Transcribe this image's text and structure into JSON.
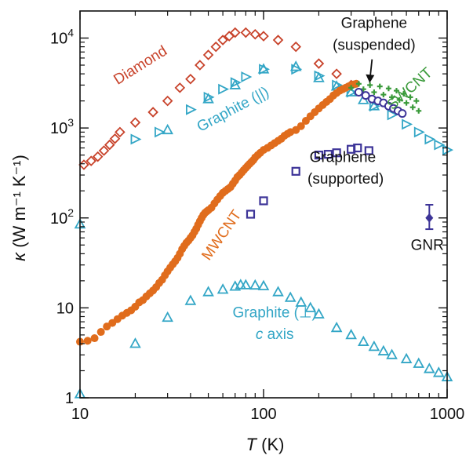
{
  "chart_data": {
    "type": "scatter",
    "xscale": "log",
    "yscale": "log",
    "xlim": [
      10,
      1000
    ],
    "ylim": [
      1,
      20000
    ],
    "xlabel": {
      "symbol": "T",
      "unit": " (K)"
    },
    "ylabel": {
      "symbol": "κ",
      "unit": " (W m⁻¹ K⁻¹)"
    },
    "xticks": [
      {
        "value": 10,
        "label": "10"
      },
      {
        "value": 100,
        "label": "100"
      },
      {
        "value": 1000,
        "label": "1000"
      }
    ],
    "yticks": [
      {
        "value": 1,
        "base": "1",
        "exp": ""
      },
      {
        "value": 10,
        "base": "10",
        "exp": ""
      },
      {
        "value": 100,
        "base": "10",
        "exp": "2"
      },
      {
        "value": 1000,
        "base": "10",
        "exp": "3"
      },
      {
        "value": 10000,
        "base": "10",
        "exp": "4"
      }
    ],
    "colors": {
      "diamond": "#c8432b",
      "graphite": "#33a6c6",
      "mwcnt": "#e06c1c",
      "swcnt": "#3a9a3a",
      "graphene": "#3d3498",
      "axis": "#111111"
    },
    "series": [
      {
        "key": "diamond",
        "marker": "open-diamond",
        "x": [
          10.5,
          11.5,
          12.5,
          13.5,
          14.5,
          15.5,
          16.5,
          20,
          25,
          30,
          35,
          40,
          45,
          50,
          55,
          60,
          65,
          70,
          80,
          90,
          100,
          120,
          150,
          200,
          250,
          300
        ],
        "y": [
          390,
          430,
          480,
          560,
          650,
          760,
          900,
          1150,
          1500,
          2000,
          2800,
          3500,
          5000,
          6500,
          8000,
          9500,
          10500,
          11500,
          11500,
          11000,
          10500,
          9500,
          8000,
          5200,
          4000,
          3000
        ]
      },
      {
        "key": "graphite-inplane",
        "marker": "open-triangle-right",
        "x": [
          20,
          27,
          40,
          50,
          60,
          70,
          80,
          100,
          150,
          200,
          250,
          300,
          400,
          500,
          600,
          700,
          800,
          900,
          1000
        ],
        "y": [
          750,
          900,
          1600,
          2200,
          2700,
          3200,
          3700,
          4500,
          4500,
          3800,
          3000,
          2500,
          1750,
          1400,
          1100,
          900,
          750,
          650,
          570
        ]
      },
      {
        "key": "graphite-inplane-triangles",
        "marker": "open-triangle-up",
        "x": [
          10,
          30,
          50,
          70,
          100,
          150,
          200,
          250,
          300,
          350,
          400
        ],
        "y": [
          85,
          950,
          2100,
          3000,
          4500,
          4800,
          3600,
          2900,
          2500,
          2050,
          1750
        ]
      },
      {
        "key": "mwcnt",
        "marker": "filled-circle",
        "x": [
          10,
          11,
          12,
          13,
          14,
          15,
          16,
          17,
          18,
          19,
          20,
          21,
          22,
          23,
          24,
          25,
          26,
          27,
          28,
          29,
          30,
          31,
          32,
          33,
          34,
          35,
          36,
          37,
          38,
          39,
          40,
          41,
          42,
          43,
          44,
          45,
          46,
          47,
          48,
          49,
          50,
          52,
          54,
          56,
          58,
          60,
          62,
          64,
          66,
          68,
          70,
          72,
          74,
          76,
          78,
          80,
          82,
          84,
          86,
          88,
          90,
          93,
          96,
          100,
          105,
          110,
          115,
          120,
          125,
          130,
          135,
          140,
          150,
          160,
          170,
          180,
          190,
          200,
          210,
          220,
          230,
          240,
          250,
          260,
          270,
          280,
          290,
          300,
          310,
          320
        ],
        "y": [
          4.2,
          4.3,
          4.6,
          5.4,
          6.2,
          6.8,
          7.5,
          8.2,
          8.8,
          9.4,
          10.3,
          11.5,
          12.2,
          13.4,
          14.5,
          15.6,
          17.0,
          18.9,
          20.5,
          23.0,
          25.5,
          28.0,
          30.5,
          33.0,
          36.0,
          40.0,
          45.0,
          49.0,
          53.0,
          56.0,
          60.0,
          64.0,
          70.0,
          76.0,
          84.0,
          92.0,
          100,
          108,
          114,
          118,
          122,
          130,
          145,
          160,
          175,
          190,
          200,
          210,
          220,
          240,
          260,
          285,
          300,
          320,
          340,
          360,
          380,
          400,
          420,
          440,
          470,
          500,
          530,
          570,
          600,
          640,
          680,
          720,
          760,
          820,
          860,
          900,
          950,
          1050,
          1200,
          1350,
          1500,
          1650,
          1800,
          1950,
          2100,
          2300,
          2450,
          2600,
          2700,
          2800,
          2900,
          3000,
          3050,
          3100
        ]
      },
      {
        "key": "swcnt",
        "marker": "plus",
        "x": [
          300,
          350,
          400,
          450,
          500,
          550,
          600,
          650,
          700,
          330,
          380,
          430,
          480,
          530,
          580,
          630,
          680
        ],
        "y": [
          2800,
          2700,
          2500,
          2350,
          2200,
          2050,
          1900,
          1700,
          1550,
          3100,
          3000,
          2900,
          2750,
          2600,
          2400,
          2200,
          2000
        ]
      },
      {
        "key": "graphene-suspended",
        "marker": "open-circle",
        "x": [
          330,
          360,
          390,
          420,
          450,
          480,
          510,
          540,
          570
        ],
        "y": [
          2500,
          2300,
          2100,
          2000,
          1900,
          1750,
          1650,
          1550,
          1450
        ]
      },
      {
        "key": "graphene-supported",
        "marker": "open-square",
        "x": [
          85,
          100,
          150,
          200,
          225,
          250,
          300,
          325,
          375
        ],
        "y": [
          110,
          155,
          330,
          500,
          510,
          530,
          580,
          600,
          560
        ]
      },
      {
        "key": "graphite-cross",
        "marker": "open-triangle-up",
        "x": [
          10,
          20,
          30,
          40,
          50,
          60,
          70,
          75,
          80,
          90,
          100,
          120,
          140,
          160,
          180,
          200,
          250,
          300,
          350,
          400,
          450,
          500,
          600,
          700,
          800,
          900,
          1000
        ],
        "y": [
          1.1,
          4.0,
          7.8,
          12.0,
          15.0,
          16.0,
          17.3,
          18.0,
          17.9,
          17.8,
          17.5,
          15.0,
          13.0,
          11.5,
          10.0,
          8.5,
          6.0,
          5.0,
          4.2,
          3.7,
          3.3,
          3.0,
          2.7,
          2.4,
          2.1,
          1.9,
          1.7
        ]
      }
    ],
    "gnr": {
      "x": 800,
      "y": 100,
      "ylow": 75,
      "yhigh": 140
    },
    "annotations": [
      {
        "key": "diamond",
        "text": "Diamond",
        "x": 22,
        "y": 4500,
        "rotate": -32
      },
      {
        "key": "graphite-inplane",
        "text": "Graphite (||)",
        "x": 70,
        "y": 1450,
        "rotate": -28
      },
      {
        "key": "mwcnt",
        "text": "MWCNT",
        "x": 62,
        "y": 60,
        "rotate": -55
      },
      {
        "key": "swcnt",
        "text": "SWCNT",
        "x": 650,
        "y": 2500,
        "rotate": -42
      },
      {
        "key": "graphene-suspended-1",
        "text": "Graphene",
        "x": 400,
        "y": 13000,
        "rotate": 0
      },
      {
        "key": "graphene-suspended-2",
        "text": "(suspended)",
        "x": 400,
        "y": 7400,
        "rotate": 0
      },
      {
        "key": "graphene-supported-1",
        "text": "Graphene",
        "x": 270,
        "y": 420,
        "rotate": 0
      },
      {
        "key": "graphene-supported-2",
        "text": "(supported)",
        "x": 280,
        "y": 240,
        "rotate": 0
      },
      {
        "key": "gnr",
        "text": "GNR",
        "x": 780,
        "y": 44,
        "rotate": 0
      },
      {
        "key": "graphite-cross-1",
        "text": "Graphite (⊥)",
        "x": 115,
        "y": 7.8,
        "rotate": 0
      },
      {
        "key": "graphite-cross-2",
        "text": "c axis",
        "x": 115,
        "y": 4.5,
        "rotate": 0
      }
    ]
  }
}
